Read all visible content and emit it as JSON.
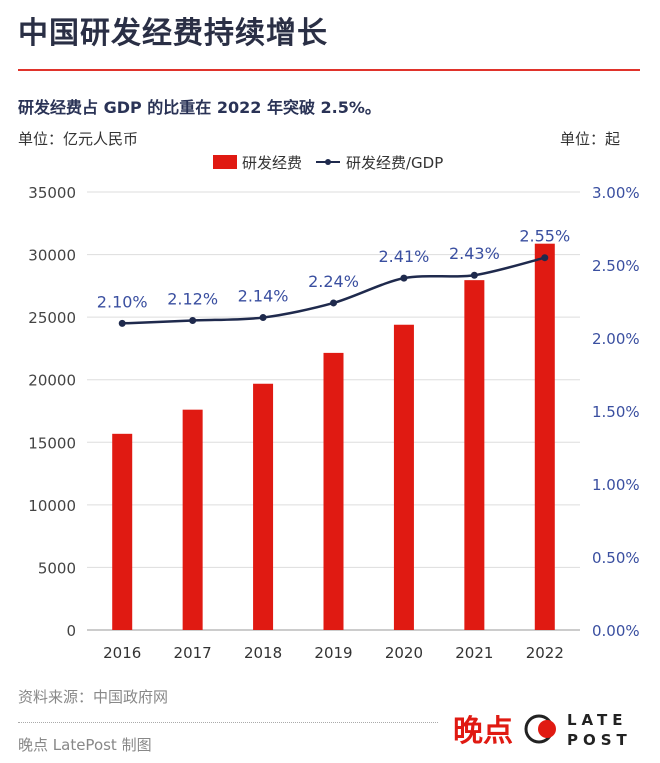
{
  "header": {
    "title": "中国研发经费持续增长",
    "subtitle": "研发经费占 GDP 的比重在 2022 年突破 2.5%。",
    "unit_left": "单位：亿元人民币",
    "unit_right": "单位：起"
  },
  "footer": {
    "source": "资料来源：中国政府网",
    "credit": "晚点 LatePost 制图",
    "logo_text": "晚点 LATE POST"
  },
  "colors": {
    "bar": "#e01a12",
    "line": "#1f2a4d",
    "right_axis": "#3a4fa0",
    "grid": "#dddddd"
  },
  "chart_data": {
    "type": "bar+line",
    "categories": [
      "2016",
      "2017",
      "2018",
      "2019",
      "2020",
      "2021",
      "2022"
    ],
    "series": [
      {
        "name": "研发经费",
        "type": "bar",
        "axis": "left",
        "values": [
          15677,
          17606,
          19678,
          22144,
          24393,
          27956,
          30870
        ]
      },
      {
        "name": "研发经费/GDP",
        "type": "line",
        "axis": "right",
        "values": [
          2.1,
          2.12,
          2.14,
          2.24,
          2.41,
          2.43,
          2.55
        ],
        "labels": [
          "2.10%",
          "2.12%",
          "2.14%",
          "2.24%",
          "2.41%",
          "2.43%",
          "2.55%"
        ]
      }
    ],
    "left_axis": {
      "ylim": [
        0,
        35000
      ],
      "ticks": [
        "0",
        "5000",
        "10000",
        "15000",
        "20000",
        "25000",
        "30000",
        "35000"
      ]
    },
    "right_axis": {
      "ylim": [
        0,
        3
      ],
      "ticks": [
        "0.00%",
        "0.50%",
        "1.00%",
        "1.50%",
        "2.00%",
        "2.50%",
        "3.00%"
      ]
    },
    "grid": true,
    "legend": "top-center"
  }
}
